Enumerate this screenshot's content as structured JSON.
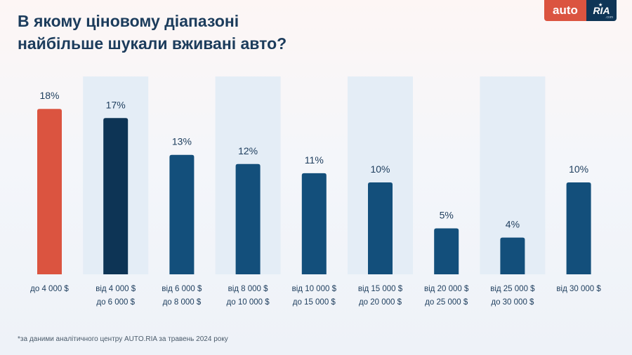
{
  "header": {
    "title_line1": "В якому ціновому діапазоні",
    "title_line2": "найбільше шукали вживані авто?"
  },
  "logo": {
    "auto": "auto",
    "ria": "RIA",
    "com": ".com"
  },
  "footnote": "*за даними аналітичного центру AUTO.RIA за травень 2024 року",
  "colors": {
    "highlight": "#db5440",
    "dark": "#0d3455",
    "bar": "#134f7b",
    "band": "#e4edf6",
    "text": "#1c3c5c"
  },
  "chart_data": {
    "type": "bar",
    "title": "В якому ціновому діапазоні найбільше шукали вживані авто?",
    "categories": [
      [
        "до 4 000 $"
      ],
      [
        "від 4 000 $",
        "до 6 000 $"
      ],
      [
        "від 6 000 $",
        "до 8 000 $"
      ],
      [
        "від 8 000 $",
        "до 10 000 $"
      ],
      [
        "від 10 000 $",
        "до 15 000 $"
      ],
      [
        "від 15 000 $",
        "до 20 000 $"
      ],
      [
        "від 20 000 $",
        "до 25 000 $"
      ],
      [
        "від 25 000 $",
        "до 30 000 $"
      ],
      [
        "від 30 000 $"
      ]
    ],
    "values": [
      18,
      17,
      13,
      12,
      11,
      10,
      5,
      4,
      10
    ],
    "value_labels": [
      "18%",
      "17%",
      "13%",
      "12%",
      "11%",
      "10%",
      "5%",
      "4%",
      "10%"
    ],
    "unit": "%",
    "ylim": [
      0,
      20
    ],
    "grid": false,
    "legend": "none"
  }
}
